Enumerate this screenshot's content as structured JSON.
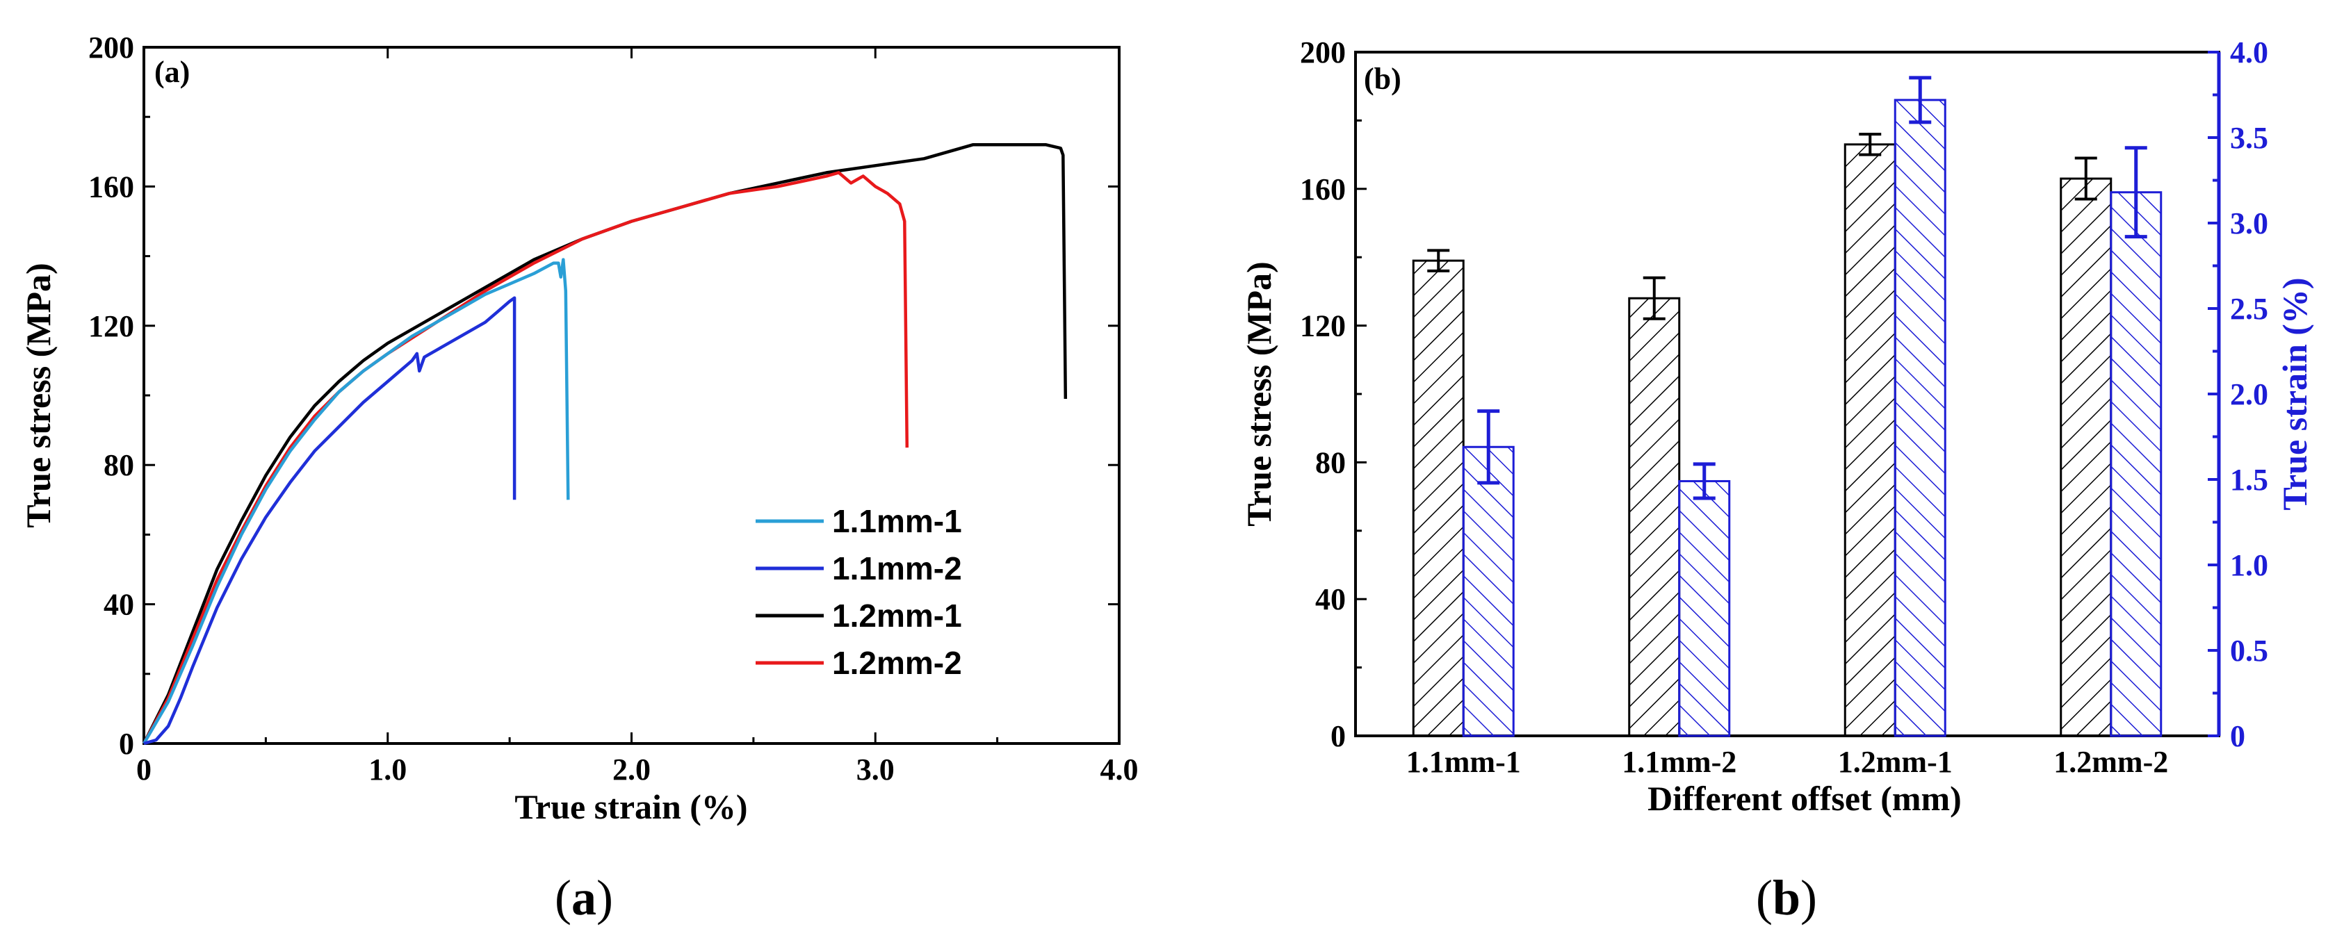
{
  "chart_data": [
    {
      "panel": "a",
      "type": "line",
      "tag": "(a)",
      "caption_open": "(",
      "caption_letter": "a",
      "caption_close": ")",
      "xlabel": "True strain (%)",
      "ylabel": "True stress (MPa)",
      "xlim": [
        0,
        4.0
      ],
      "ylim": [
        0,
        200
      ],
      "xticks": [
        0,
        1.0,
        2.0,
        3.0,
        4.0
      ],
      "xtick_labels": [
        "0",
        "1.0",
        "2.0",
        "3.0",
        "4.0"
      ],
      "yticks": [
        0,
        40,
        80,
        120,
        160,
        200
      ],
      "ytick_labels": [
        "0",
        "40",
        "80",
        "120",
        "160",
        "200"
      ],
      "legend_position": "bottom-right",
      "series": [
        {
          "name": "1.1mm-1",
          "color": "#2a9fd6",
          "points": [
            [
              0,
              0
            ],
            [
              0.1,
              12
            ],
            [
              0.2,
              28
            ],
            [
              0.3,
              45
            ],
            [
              0.4,
              60
            ],
            [
              0.5,
              73
            ],
            [
              0.6,
              84
            ],
            [
              0.7,
              93
            ],
            [
              0.8,
              101
            ],
            [
              0.9,
              107
            ],
            [
              1.0,
              112
            ],
            [
              1.1,
              117
            ],
            [
              1.2,
              121
            ],
            [
              1.3,
              125
            ],
            [
              1.4,
              129
            ],
            [
              1.5,
              132
            ],
            [
              1.6,
              135
            ],
            [
              1.68,
              138
            ],
            [
              1.7,
              138
            ],
            [
              1.71,
              134
            ],
            [
              1.72,
              139
            ],
            [
              1.73,
              130
            ],
            [
              1.74,
              70
            ]
          ]
        },
        {
          "name": "1.1mm-2",
          "color": "#1f2fd8",
          "points": [
            [
              0,
              0
            ],
            [
              0.05,
              1
            ],
            [
              0.1,
              5
            ],
            [
              0.15,
              13
            ],
            [
              0.2,
              22
            ],
            [
              0.3,
              39
            ],
            [
              0.4,
              53
            ],
            [
              0.5,
              65
            ],
            [
              0.6,
              75
            ],
            [
              0.7,
              84
            ],
            [
              0.8,
              91
            ],
            [
              0.9,
              98
            ],
            [
              1.0,
              104
            ],
            [
              1.1,
              110
            ],
            [
              1.12,
              112
            ],
            [
              1.13,
              107
            ],
            [
              1.15,
              111
            ],
            [
              1.2,
              113
            ],
            [
              1.3,
              117
            ],
            [
              1.4,
              121
            ],
            [
              1.45,
              124
            ],
            [
              1.5,
              127
            ],
            [
              1.52,
              128
            ],
            [
              1.52,
              70
            ]
          ]
        },
        {
          "name": "1.2mm-1",
          "color": "#000000",
          "points": [
            [
              0,
              0
            ],
            [
              0.1,
              14
            ],
            [
              0.2,
              32
            ],
            [
              0.3,
              50
            ],
            [
              0.4,
              64
            ],
            [
              0.5,
              77
            ],
            [
              0.6,
              88
            ],
            [
              0.7,
              97
            ],
            [
              0.8,
              104
            ],
            [
              0.9,
              110
            ],
            [
              1.0,
              115
            ],
            [
              1.2,
              123
            ],
            [
              1.4,
              131
            ],
            [
              1.6,
              139
            ],
            [
              1.8,
              145
            ],
            [
              2.0,
              150
            ],
            [
              2.2,
              154
            ],
            [
              2.4,
              158
            ],
            [
              2.6,
              161
            ],
            [
              2.8,
              164
            ],
            [
              3.0,
              166
            ],
            [
              3.2,
              168
            ],
            [
              3.4,
              172
            ],
            [
              3.6,
              172
            ],
            [
              3.7,
              172
            ],
            [
              3.76,
              171
            ],
            [
              3.77,
              169
            ],
            [
              3.78,
              99
            ]
          ]
        },
        {
          "name": "1.2mm-2",
          "color": "#e8191b",
          "points": [
            [
              0,
              0
            ],
            [
              0.1,
              13
            ],
            [
              0.2,
              30
            ],
            [
              0.3,
              47
            ],
            [
              0.4,
              61
            ],
            [
              0.5,
              74
            ],
            [
              0.6,
              85
            ],
            [
              0.7,
              94
            ],
            [
              0.8,
              101
            ],
            [
              0.9,
              107
            ],
            [
              1.0,
              112
            ],
            [
              1.2,
              121
            ],
            [
              1.4,
              130
            ],
            [
              1.6,
              138
            ],
            [
              1.8,
              145
            ],
            [
              2.0,
              150
            ],
            [
              2.2,
              154
            ],
            [
              2.4,
              158
            ],
            [
              2.6,
              160
            ],
            [
              2.8,
              163
            ],
            [
              2.85,
              164
            ],
            [
              2.9,
              161
            ],
            [
              2.95,
              163
            ],
            [
              3.0,
              160
            ],
            [
              3.05,
              158
            ],
            [
              3.1,
              155
            ],
            [
              3.12,
              150
            ],
            [
              3.13,
              85
            ]
          ]
        }
      ]
    },
    {
      "panel": "b",
      "type": "bar",
      "tag": "(b)",
      "caption_open": "(",
      "caption_letter": "b",
      "caption_close": ")",
      "xlabel": "Different offset (mm)",
      "ylabel": "True stress (MPa)",
      "y2label": "True strain (%)",
      "categories": [
        "1.1mm-1",
        "1.1mm-2",
        "1.2mm-1",
        "1.2mm-2"
      ],
      "ylim": [
        0,
        200
      ],
      "y2lim": [
        0,
        4.0
      ],
      "yticks": [
        0,
        40,
        80,
        120,
        160,
        200
      ],
      "ytick_labels": [
        "0",
        "40",
        "80",
        "120",
        "160",
        "200"
      ],
      "y2ticks": [
        0,
        0.5,
        1.0,
        1.5,
        2.0,
        2.5,
        3.0,
        3.5,
        4.0
      ],
      "y2tick_labels": [
        "0",
        "0.5",
        "1.0",
        "1.5",
        "2.0",
        "2.5",
        "3.0",
        "3.5",
        "4.0"
      ],
      "axis2_color": "#1d1dd6",
      "series": [
        {
          "name": "True stress (MPa)",
          "axis": "left",
          "color": "#000000",
          "values": [
            139,
            128,
            173,
            163
          ],
          "errors": [
            3,
            6,
            3,
            6
          ]
        },
        {
          "name": "True strain (%)",
          "axis": "right",
          "color": "#1d1dd6",
          "values": [
            1.69,
            1.49,
            3.72,
            3.18
          ],
          "errors": [
            0.21,
            0.1,
            0.13,
            0.26
          ]
        }
      ]
    }
  ]
}
